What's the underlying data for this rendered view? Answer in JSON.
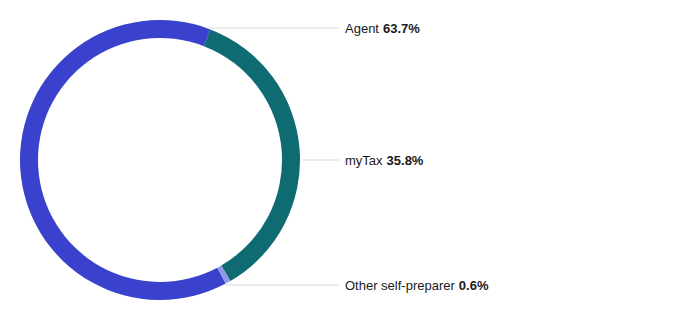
{
  "chart_data": {
    "type": "pie",
    "categories": [
      "Agent",
      "myTax",
      "Other self-preparer"
    ],
    "values": [
      63.7,
      35.8,
      0.6
    ],
    "value_labels": [
      "63.7%",
      "35.8%",
      "0.6%"
    ],
    "colors": [
      "#3a41cc",
      "#0e6b72",
      "#9297ea"
    ],
    "data_labels": true
  }
}
